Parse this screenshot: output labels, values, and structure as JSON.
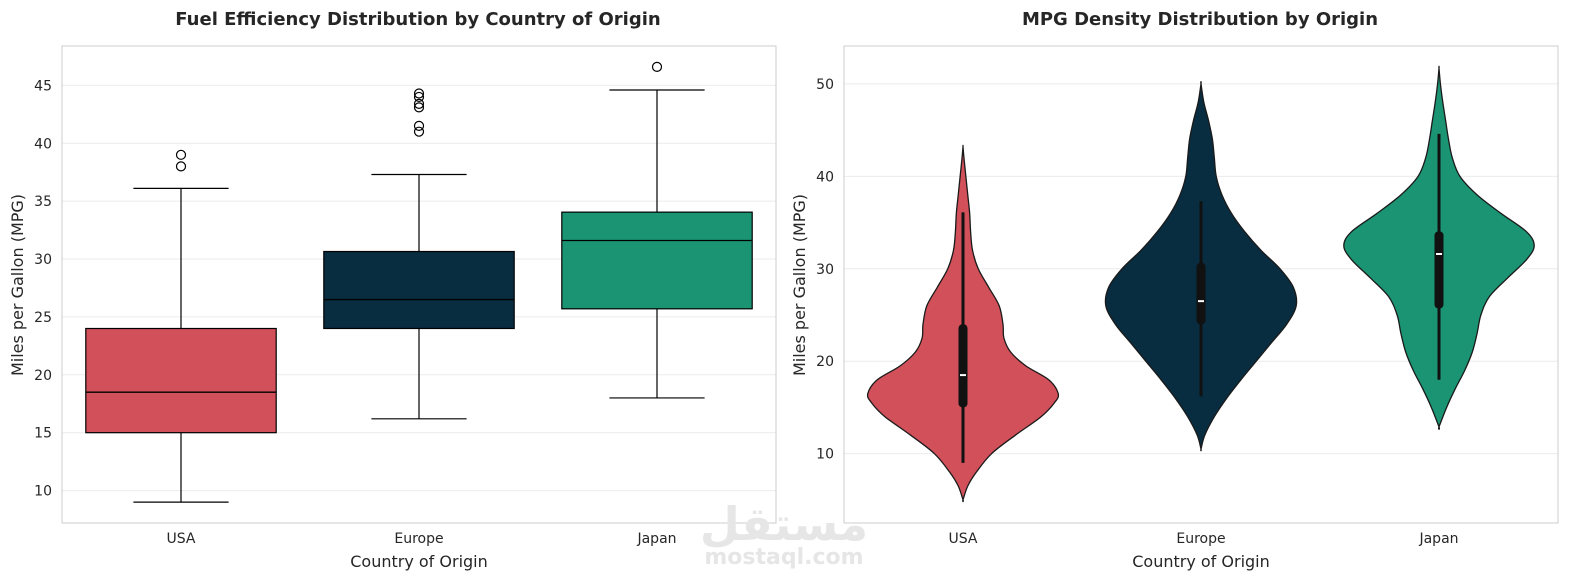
{
  "watermark": {
    "arabic": "مستقل",
    "latin": "mostaql.com"
  },
  "chart_data": [
    {
      "type": "box",
      "title": "Fuel Efficiency Distribution by Country of Origin",
      "xlabel": "Country of Origin",
      "ylabel": "Miles per Gallon (MPG)",
      "ylim": [
        7.2,
        48.4
      ],
      "yticks": [
        10,
        15,
        20,
        25,
        30,
        35,
        40,
        45
      ],
      "grid": true,
      "categories": [
        "USA",
        "Europe",
        "Japan"
      ],
      "colors": [
        "#d1505a",
        "#082c40",
        "#1a9473"
      ],
      "boxes": [
        {
          "whisker_low": 9.0,
          "q1": 15.0,
          "median": 18.5,
          "q3": 24.0,
          "whisker_high": 36.1,
          "outliers": [
            38.0,
            39.0
          ]
        },
        {
          "whisker_low": 16.2,
          "q1": 24.0,
          "median": 26.5,
          "q3": 30.65,
          "whisker_high": 37.3,
          "outliers": [
            41.0,
            41.5,
            43.1,
            43.4,
            44.0,
            44.3
          ]
        },
        {
          "whisker_low": 18.0,
          "q1": 25.7,
          "median": 31.6,
          "q3": 34.05,
          "whisker_high": 44.6,
          "outliers": [
            46.6
          ]
        }
      ]
    },
    {
      "type": "violin",
      "title": "MPG Density Distribution by Origin",
      "xlabel": "Country of Origin",
      "ylabel": "Miles per Gallon (MPG)",
      "ylim": [
        2.5,
        54.1
      ],
      "yticks": [
        10,
        20,
        30,
        40,
        50
      ],
      "grid": true,
      "categories": [
        "USA",
        "Europe",
        "Japan"
      ],
      "colors": [
        "#d1505a",
        "#082c40",
        "#1a9473"
      ],
      "violins": [
        {
          "profile": [
            [
              5.0,
              0.0
            ],
            [
              6.5,
              0.05
            ],
            [
              8.0,
              0.14
            ],
            [
              10.0,
              0.3
            ],
            [
              12.0,
              0.55
            ],
            [
              14.0,
              0.82
            ],
            [
              15.5,
              0.96
            ],
            [
              16.5,
              1.0
            ],
            [
              18.0,
              0.9
            ],
            [
              19.5,
              0.66
            ],
            [
              21.0,
              0.5
            ],
            [
              22.5,
              0.43
            ],
            [
              24.0,
              0.42
            ],
            [
              26.0,
              0.38
            ],
            [
              28.0,
              0.27
            ],
            [
              30.0,
              0.16
            ],
            [
              32.0,
              0.1
            ],
            [
              34.0,
              0.08
            ],
            [
              36.0,
              0.07
            ],
            [
              38.0,
              0.05
            ],
            [
              40.0,
              0.03
            ],
            [
              42.0,
              0.01
            ],
            [
              43.2,
              0.0
            ]
          ],
          "whisker_low": 9.0,
          "q1": 15.0,
          "median": 18.5,
          "q3": 24.0,
          "whisker_high": 36.1
        },
        {
          "profile": [
            [
              10.5,
              0.0
            ],
            [
              12.0,
              0.04
            ],
            [
              14.0,
              0.14
            ],
            [
              16.0,
              0.27
            ],
            [
              18.0,
              0.42
            ],
            [
              20.0,
              0.58
            ],
            [
              22.0,
              0.74
            ],
            [
              24.0,
              0.9
            ],
            [
              26.0,
              1.0
            ],
            [
              28.0,
              0.97
            ],
            [
              30.0,
              0.83
            ],
            [
              32.0,
              0.63
            ],
            [
              34.0,
              0.46
            ],
            [
              36.0,
              0.32
            ],
            [
              38.0,
              0.22
            ],
            [
              40.0,
              0.16
            ],
            [
              42.0,
              0.14
            ],
            [
              44.0,
              0.12
            ],
            [
              46.0,
              0.08
            ],
            [
              48.0,
              0.03
            ],
            [
              50.0,
              0.0
            ]
          ],
          "whisker_low": 16.2,
          "q1": 24.0,
          "median": 26.5,
          "q3": 30.65,
          "whisker_high": 37.3
        },
        {
          "profile": [
            [
              12.9,
              0.0
            ],
            [
              15.0,
              0.08
            ],
            [
              17.0,
              0.17
            ],
            [
              19.0,
              0.27
            ],
            [
              21.0,
              0.35
            ],
            [
              23.0,
              0.4
            ],
            [
              25.0,
              0.44
            ],
            [
              27.0,
              0.53
            ],
            [
              29.0,
              0.72
            ],
            [
              31.0,
              0.92
            ],
            [
              32.5,
              1.0
            ],
            [
              34.0,
              0.92
            ],
            [
              36.0,
              0.65
            ],
            [
              38.0,
              0.4
            ],
            [
              40.0,
              0.22
            ],
            [
              42.0,
              0.14
            ],
            [
              44.0,
              0.1
            ],
            [
              46.0,
              0.07
            ],
            [
              48.0,
              0.04
            ],
            [
              50.0,
              0.015
            ],
            [
              51.7,
              0.0
            ]
          ],
          "whisker_low": 18.0,
          "q1": 25.7,
          "median": 31.6,
          "q3": 34.05,
          "whisker_high": 44.6
        }
      ]
    }
  ]
}
